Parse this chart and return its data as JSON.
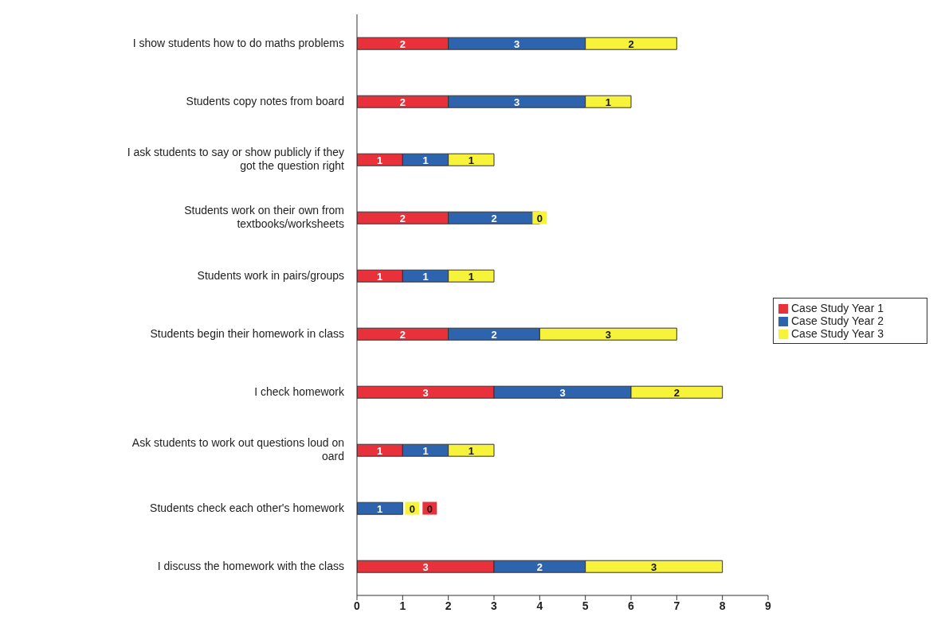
{
  "chart_data": {
    "type": "bar",
    "orientation": "horizontal",
    "stacked": true,
    "data_labels": true,
    "legend": "right",
    "grid": false,
    "categories": [
      "I show students how to do maths problems",
      "Students copy notes from board",
      "I ask students to say or show publicly if they got the question right",
      "Students work on their own from textbooks/worksheets",
      "Students work in pairs/groups",
      "Students begin their homework in class",
      "I check homework",
      "Ask students to work out questions loud on oard",
      "Students check each other's homework",
      "I discuss the homework with the class"
    ],
    "series": [
      {
        "name": "Case Study Year 1",
        "color": "#e8313b",
        "values": [
          2,
          2,
          1,
          2,
          1,
          2,
          3,
          1,
          0,
          3
        ]
      },
      {
        "name": "Case Study Year 2",
        "color": "#2e63ad",
        "values": [
          3,
          3,
          1,
          2,
          1,
          2,
          3,
          1,
          1,
          2
        ]
      },
      {
        "name": "Case Study Year 3",
        "color": "#f7f23a",
        "values": [
          2,
          1,
          1,
          0,
          1,
          3,
          2,
          1,
          0,
          3
        ]
      }
    ],
    "xlim": [
      0,
      9
    ],
    "xticks": [
      0,
      1,
      2,
      3,
      4,
      5,
      6,
      7,
      8,
      9
    ]
  }
}
